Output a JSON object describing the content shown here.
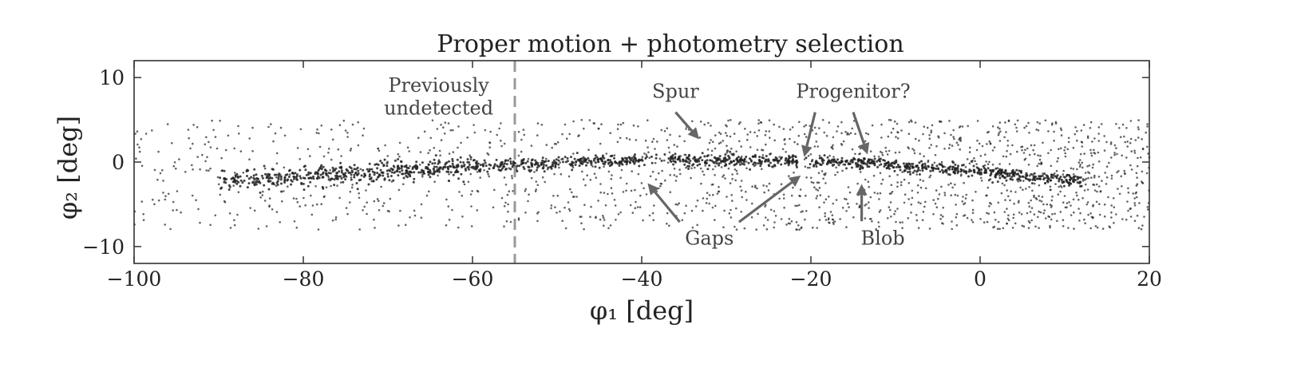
{
  "chart_data": {
    "type": "scatter",
    "title": "Proper motion + photometry selection",
    "xlabel": "φ₁ [deg]",
    "ylabel": "φ₂ [deg]",
    "xlim": [
      -100,
      20
    ],
    "ylim": [
      -12,
      12
    ],
    "xticks": [
      -100,
      -80,
      -60,
      -40,
      -20,
      0,
      20
    ],
    "yticks": [
      -10,
      0,
      10
    ],
    "xtick_labels": [
      "−100",
      "−80",
      "−60",
      "−40",
      "−20",
      "0",
      "20"
    ],
    "ytick_labels": [
      "−10",
      "0",
      "10"
    ],
    "grid": false,
    "legend": "none",
    "marker_color": "#222222",
    "reference_line": {
      "x": -55,
      "style": "dashed",
      "color": "#999999"
    },
    "stream_track": {
      "x": [
        -100,
        -80,
        -60,
        -40,
        -20,
        -12,
        0,
        20
      ],
      "y": [
        -2.8,
        -1.8,
        -0.5,
        0.3,
        0.1,
        -0.2,
        -1.2,
        -3.0
      ]
    },
    "background_region": {
      "x": [
        -100,
        20
      ],
      "y": [
        -8,
        5
      ]
    },
    "annotations": [
      {
        "text": "Previously",
        "x": -64,
        "y": 8.3
      },
      {
        "text": "undetected",
        "x": -64,
        "y": 5.6
      },
      {
        "text": "Spur",
        "x": -36,
        "y": 7.6
      },
      {
        "text": "Progenitor?",
        "x": -15,
        "y": 7.6
      },
      {
        "text": "Gaps",
        "x": -32,
        "y": -9.8
      },
      {
        "text": "Blob",
        "x": -11.5,
        "y": -9.8
      }
    ],
    "arrows": [
      {
        "from": [
          -36,
          5.9
        ],
        "to": [
          -33.2,
          2.7
        ]
      },
      {
        "from": [
          -19.5,
          5.9
        ],
        "to": [
          -20.8,
          0.6
        ]
      },
      {
        "from": [
          -15,
          5.9
        ],
        "to": [
          -13.3,
          0.9
        ]
      },
      {
        "from": [
          -35.5,
          -7.1
        ],
        "to": [
          -39.3,
          -2.5
        ]
      },
      {
        "from": [
          -28.5,
          -7.1
        ],
        "to": [
          -21.2,
          -1.6
        ]
      },
      {
        "from": [
          -14,
          -7.0
        ],
        "to": [
          -14,
          -2.6
        ]
      }
    ]
  }
}
